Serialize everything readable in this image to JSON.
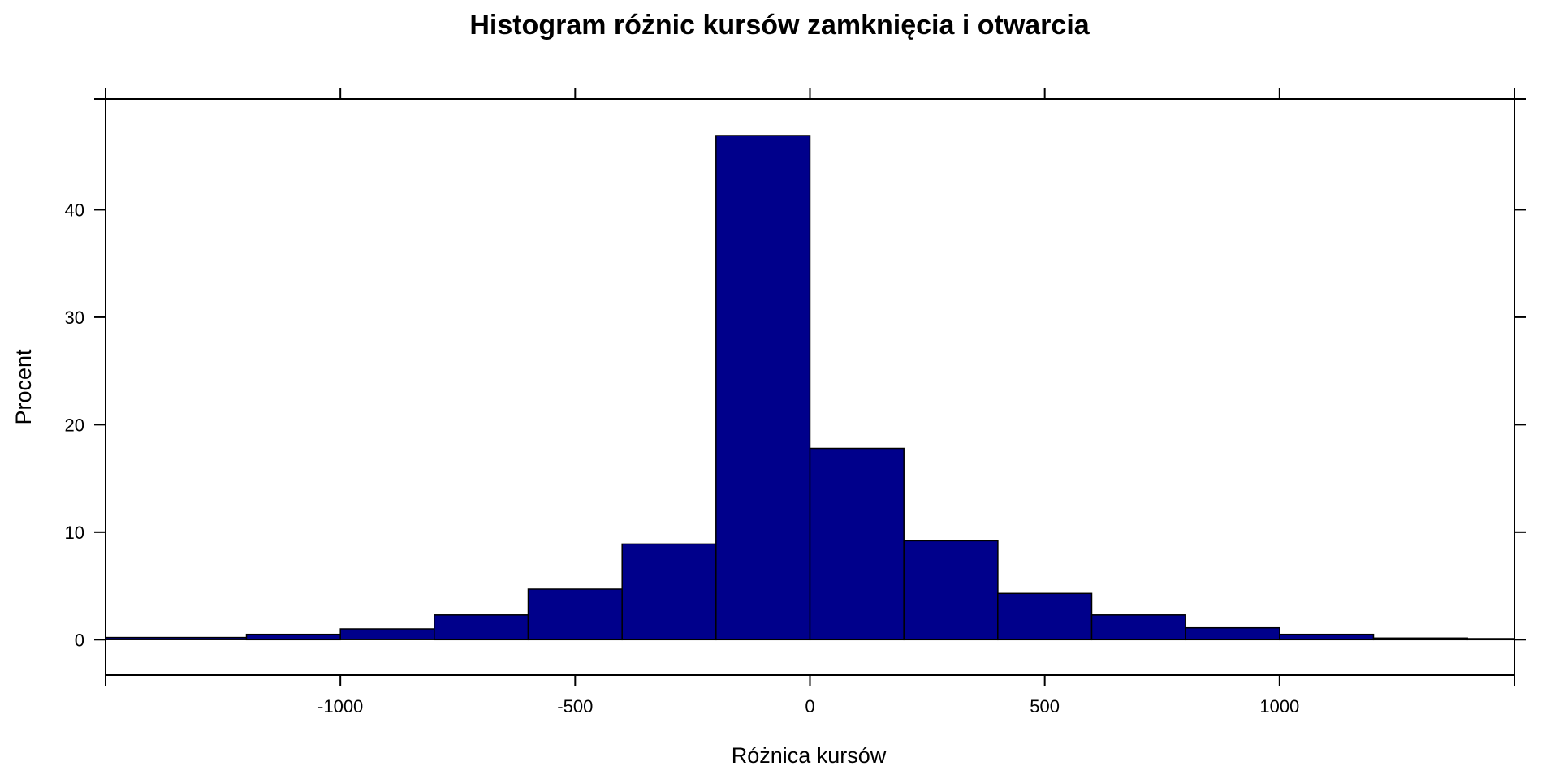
{
  "chart_data": {
    "type": "bar",
    "title": "Histogram różnic kursów zamknięcia i otwarcia",
    "xlabel": "Różnica kursów",
    "ylabel": "Procent",
    "xlim": [
      -1500,
      1500
    ],
    "ylim": [
      -3.3,
      50.3
    ],
    "x_ticks": [
      -1000,
      -500,
      0,
      500,
      1000
    ],
    "x_tick_labels": [
      "-1000",
      "-500",
      "0",
      "500",
      "1000"
    ],
    "y_ticks": [
      0,
      10,
      20,
      30,
      40
    ],
    "y_tick_labels": [
      "0",
      "10",
      "20",
      "30",
      "40"
    ],
    "bar_color": "#00008B",
    "bins": [
      {
        "from": -1500,
        "to": -1200,
        "value": 0.2
      },
      {
        "from": -1200,
        "to": -1000,
        "value": 0.5
      },
      {
        "from": -1000,
        "to": -800,
        "value": 1.0
      },
      {
        "from": -800,
        "to": -600,
        "value": 2.3
      },
      {
        "from": -600,
        "to": -400,
        "value": 4.7
      },
      {
        "from": -400,
        "to": -200,
        "value": 8.9
      },
      {
        "from": -200,
        "to": 0,
        "value": 46.9
      },
      {
        "from": 0,
        "to": 200,
        "value": 17.8
      },
      {
        "from": 200,
        "to": 400,
        "value": 9.2
      },
      {
        "from": 400,
        "to": 600,
        "value": 4.3
      },
      {
        "from": 600,
        "to": 800,
        "value": 2.3
      },
      {
        "from": 800,
        "to": 1000,
        "value": 1.1
      },
      {
        "from": 1000,
        "to": 1200,
        "value": 0.5
      },
      {
        "from": 1200,
        "to": 1400,
        "value": 0.15
      },
      {
        "from": 1400,
        "to": 1500,
        "value": 0.1
      }
    ],
    "grid": false,
    "legend": "none"
  }
}
